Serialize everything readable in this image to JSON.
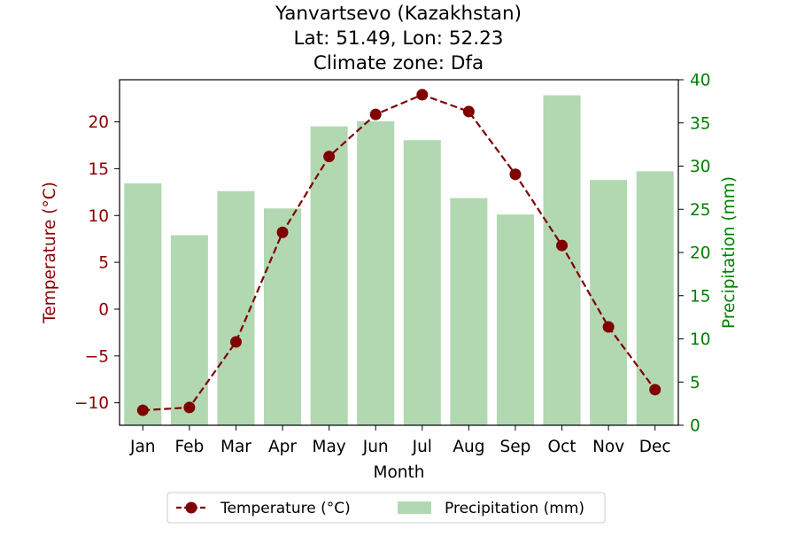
{
  "chart_data": {
    "type": "bar+line",
    "title_lines": [
      "Yanvartsevo (Kazakhstan)",
      "Lat: 51.49, Lon: 52.23",
      "Climate zone: Dfa"
    ],
    "xlabel": "Month",
    "ylabel_left": "Temperature (°C)",
    "ylabel_right": "Precipitation (mm)",
    "categories": [
      "Jan",
      "Feb",
      "Mar",
      "Apr",
      "May",
      "Jun",
      "Jul",
      "Aug",
      "Sep",
      "Oct",
      "Nov",
      "Dec"
    ],
    "series": [
      {
        "name": "Temperature (°C)",
        "kind": "line",
        "axis": "left",
        "color": "#800000",
        "line_style": "dashed",
        "marker": "circle",
        "values": [
          -10.8,
          -10.5,
          -3.5,
          8.2,
          16.3,
          20.8,
          22.9,
          21.1,
          14.4,
          6.8,
          -1.9,
          -8.6
        ]
      },
      {
        "name": "Precipitation (mm)",
        "kind": "bar",
        "axis": "right",
        "color": "#b2d8b2",
        "values": [
          28.0,
          22.0,
          27.1,
          25.1,
          34.6,
          35.2,
          33.0,
          26.3,
          24.4,
          38.2,
          28.4,
          29.4
        ]
      }
    ],
    "ylim_left": [
      -12.4,
      24.5
    ],
    "yticks_left": [
      -10,
      -5,
      0,
      5,
      10,
      15,
      20
    ],
    "ytick_labels_left": [
      "−10",
      "−5",
      "0",
      "5",
      "10",
      "15",
      "20"
    ],
    "ylim_right": [
      0,
      40
    ],
    "yticks_right": [
      0,
      5,
      10,
      15,
      20,
      25,
      30,
      35,
      40
    ],
    "left_axis_color": "#8b0000",
    "right_axis_color": "#008000",
    "grid": false,
    "legend_position": "bottom-center"
  }
}
